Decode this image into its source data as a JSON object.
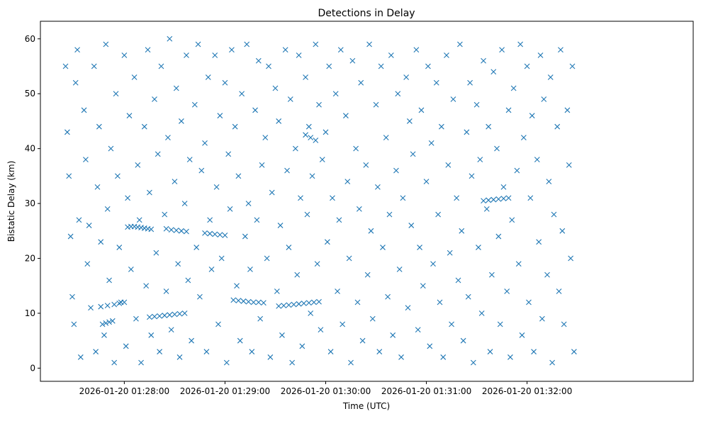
{
  "chart_data": {
    "type": "scatter",
    "title": "Detections in Delay",
    "xlabel": "Time (UTC)",
    "ylabel": "Bistatic Delay (km)",
    "x_unit": "seconds after 2026-01-20 01:27:00",
    "xlim": [
      10,
      399
    ],
    "ylim": [
      -2.4,
      63.2
    ],
    "xticks": [
      {
        "value": 60,
        "label": "2026-01-20 01:28:00"
      },
      {
        "value": 120,
        "label": "2026-01-20 01:29:00"
      },
      {
        "value": 180,
        "label": "2026-01-20 01:30:00"
      },
      {
        "value": 240,
        "label": "2026-01-20 01:31:00"
      },
      {
        "value": 300,
        "label": "2026-01-20 01:32:00"
      }
    ],
    "yticks": [
      0,
      10,
      20,
      30,
      40,
      50,
      60
    ],
    "marker": "x",
    "color": "#1f77b4",
    "points": [
      [
        25,
        55
      ],
      [
        26,
        43
      ],
      [
        27,
        35
      ],
      [
        28,
        24
      ],
      [
        29,
        13
      ],
      [
        30,
        8
      ],
      [
        31,
        52
      ],
      [
        32,
        58
      ],
      [
        33,
        27
      ],
      [
        34,
        2
      ],
      [
        36,
        47
      ],
      [
        37,
        38
      ],
      [
        38,
        19
      ],
      [
        39,
        26
      ],
      [
        40,
        11
      ],
      [
        42,
        55
      ],
      [
        43,
        3
      ],
      [
        44,
        33
      ],
      [
        45,
        44
      ],
      [
        46,
        23
      ],
      [
        48,
        6
      ],
      [
        49,
        59
      ],
      [
        50,
        29
      ],
      [
        51,
        16
      ],
      [
        52,
        40
      ],
      [
        54,
        1
      ],
      [
        55,
        50
      ],
      [
        56,
        35
      ],
      [
        57,
        22
      ],
      [
        58,
        12
      ],
      [
        60,
        57
      ],
      [
        61,
        4
      ],
      [
        62,
        31
      ],
      [
        63,
        46
      ],
      [
        64,
        18
      ],
      [
        66,
        53
      ],
      [
        67,
        9
      ],
      [
        68,
        37
      ],
      [
        69,
        27
      ],
      [
        70,
        1
      ],
      [
        72,
        44
      ],
      [
        73,
        15
      ],
      [
        74,
        58
      ],
      [
        75,
        32
      ],
      [
        76,
        6
      ],
      [
        78,
        49
      ],
      [
        79,
        21
      ],
      [
        80,
        39
      ],
      [
        81,
        3
      ],
      [
        82,
        55
      ],
      [
        84,
        28
      ],
      [
        85,
        14
      ],
      [
        86,
        42
      ],
      [
        87,
        60
      ],
      [
        88,
        7
      ],
      [
        90,
        34
      ],
      [
        91,
        51
      ],
      [
        92,
        19
      ],
      [
        93,
        2
      ],
      [
        94,
        45
      ],
      [
        96,
        30
      ],
      [
        97,
        57
      ],
      [
        98,
        16
      ],
      [
        99,
        38
      ],
      [
        100,
        5
      ],
      [
        102,
        48
      ],
      [
        103,
        22
      ],
      [
        104,
        59
      ],
      [
        105,
        13
      ],
      [
        106,
        36
      ],
      [
        108,
        41
      ],
      [
        109,
        3
      ],
      [
        110,
        53
      ],
      [
        111,
        27
      ],
      [
        112,
        18
      ],
      [
        114,
        57
      ],
      [
        115,
        33
      ],
      [
        116,
        8
      ],
      [
        117,
        46
      ],
      [
        118,
        20
      ],
      [
        120,
        52
      ],
      [
        121,
        1
      ],
      [
        122,
        39
      ],
      [
        123,
        29
      ],
      [
        124,
        58
      ],
      [
        126,
        44
      ],
      [
        127,
        15
      ],
      [
        128,
        35
      ],
      [
        129,
        5
      ],
      [
        130,
        50
      ],
      [
        132,
        24
      ],
      [
        133,
        59
      ],
      [
        134,
        30
      ],
      [
        135,
        18
      ],
      [
        136,
        3
      ],
      [
        138,
        47
      ],
      [
        139,
        27
      ],
      [
        140,
        56
      ],
      [
        141,
        9
      ],
      [
        142,
        37
      ],
      [
        144,
        42
      ],
      [
        145,
        20
      ],
      [
        146,
        55
      ],
      [
        147,
        2
      ],
      [
        148,
        32
      ],
      [
        150,
        51
      ],
      [
        151,
        14
      ],
      [
        152,
        45
      ],
      [
        153,
        26
      ],
      [
        154,
        6
      ],
      [
        156,
        58
      ],
      [
        157,
        36
      ],
      [
        158,
        22
      ],
      [
        159,
        49
      ],
      [
        160,
        1
      ],
      [
        162,
        40
      ],
      [
        163,
        17
      ],
      [
        164,
        57
      ],
      [
        165,
        31
      ],
      [
        166,
        4
      ],
      [
        168,
        53
      ],
      [
        169,
        28
      ],
      [
        170,
        44
      ],
      [
        171,
        10
      ],
      [
        172,
        35
      ],
      [
        174,
        59
      ],
      [
        175,
        19
      ],
      [
        176,
        48
      ],
      [
        177,
        7
      ],
      [
        178,
        38
      ],
      [
        180,
        43
      ],
      [
        181,
        23
      ],
      [
        182,
        55
      ],
      [
        183,
        3
      ],
      [
        184,
        31
      ],
      [
        186,
        50
      ],
      [
        187,
        14
      ],
      [
        188,
        27
      ],
      [
        189,
        58
      ],
      [
        190,
        8
      ],
      [
        192,
        46
      ],
      [
        193,
        34
      ],
      [
        194,
        20
      ],
      [
        195,
        1
      ],
      [
        196,
        56
      ],
      [
        198,
        40
      ],
      [
        199,
        12
      ],
      [
        200,
        29
      ],
      [
        201,
        52
      ],
      [
        202,
        5
      ],
      [
        204,
        37
      ],
      [
        205,
        17
      ],
      [
        206,
        59
      ],
      [
        207,
        25
      ],
      [
        208,
        9
      ],
      [
        210,
        48
      ],
      [
        211,
        33
      ],
      [
        212,
        3
      ],
      [
        213,
        55
      ],
      [
        214,
        22
      ],
      [
        216,
        42
      ],
      [
        217,
        13
      ],
      [
        218,
        28
      ],
      [
        219,
        57
      ],
      [
        220,
        6
      ],
      [
        222,
        36
      ],
      [
        223,
        50
      ],
      [
        224,
        18
      ],
      [
        225,
        2
      ],
      [
        226,
        31
      ],
      [
        228,
        53
      ],
      [
        229,
        11
      ],
      [
        230,
        45
      ],
      [
        231,
        26
      ],
      [
        232,
        39
      ],
      [
        234,
        58
      ],
      [
        235,
        7
      ],
      [
        236,
        22
      ],
      [
        237,
        47
      ],
      [
        238,
        15
      ],
      [
        240,
        34
      ],
      [
        241,
        55
      ],
      [
        242,
        4
      ],
      [
        243,
        41
      ],
      [
        244,
        19
      ],
      [
        246,
        52
      ],
      [
        247,
        28
      ],
      [
        248,
        12
      ],
      [
        249,
        44
      ],
      [
        250,
        2
      ],
      [
        252,
        57
      ],
      [
        253,
        37
      ],
      [
        254,
        21
      ],
      [
        255,
        8
      ],
      [
        256,
        49
      ],
      [
        258,
        31
      ],
      [
        259,
        16
      ],
      [
        260,
        59
      ],
      [
        261,
        25
      ],
      [
        262,
        5
      ],
      [
        264,
        43
      ],
      [
        265,
        13
      ],
      [
        266,
        52
      ],
      [
        267,
        35
      ],
      [
        268,
        1
      ],
      [
        270,
        48
      ],
      [
        271,
        22
      ],
      [
        272,
        38
      ],
      [
        273,
        10
      ],
      [
        274,
        56
      ],
      [
        276,
        29
      ],
      [
        277,
        44
      ],
      [
        278,
        3
      ],
      [
        279,
        17
      ],
      [
        280,
        54
      ],
      [
        282,
        40
      ],
      [
        283,
        24
      ],
      [
        284,
        8
      ],
      [
        285,
        58
      ],
      [
        286,
        33
      ],
      [
        288,
        14
      ],
      [
        289,
        47
      ],
      [
        290,
        2
      ],
      [
        291,
        27
      ],
      [
        292,
        51
      ],
      [
        294,
        36
      ],
      [
        295,
        19
      ],
      [
        296,
        59
      ],
      [
        297,
        6
      ],
      [
        298,
        42
      ],
      [
        300,
        55
      ],
      [
        301,
        12
      ],
      [
        302,
        31
      ],
      [
        303,
        46
      ],
      [
        304,
        3
      ],
      [
        306,
        38
      ],
      [
        307,
        23
      ],
      [
        308,
        57
      ],
      [
        309,
        9
      ],
      [
        310,
        49
      ],
      [
        312,
        17
      ],
      [
        313,
        34
      ],
      [
        314,
        53
      ],
      [
        315,
        1
      ],
      [
        316,
        28
      ],
      [
        318,
        44
      ],
      [
        319,
        14
      ],
      [
        320,
        58
      ],
      [
        321,
        25
      ],
      [
        322,
        8
      ],
      [
        324,
        47
      ],
      [
        325,
        37
      ],
      [
        326,
        20
      ],
      [
        327,
        55
      ],
      [
        328,
        3
      ],
      [
        47,
        8
      ],
      [
        49,
        8.2
      ],
      [
        51,
        8.4
      ],
      [
        53,
        8.6
      ],
      [
        46,
        11.2
      ],
      [
        50,
        11.4
      ],
      [
        54,
        11.6
      ],
      [
        57,
        11.8
      ],
      [
        60,
        12
      ],
      [
        62,
        25.7
      ],
      [
        64,
        25.8
      ],
      [
        66,
        25.8
      ],
      [
        68,
        25.7
      ],
      [
        70,
        25.6
      ],
      [
        72,
        25.5
      ],
      [
        74,
        25.4
      ],
      [
        76,
        25.3
      ],
      [
        85,
        25.4
      ],
      [
        88,
        25.2
      ],
      [
        91,
        25.1
      ],
      [
        94,
        25
      ],
      [
        97,
        24.9
      ],
      [
        108,
        24.6
      ],
      [
        111,
        24.5
      ],
      [
        114,
        24.4
      ],
      [
        117,
        24.3
      ],
      [
        120,
        24.2
      ],
      [
        75,
        9.3
      ],
      [
        78,
        9.4
      ],
      [
        81,
        9.5
      ],
      [
        84,
        9.6
      ],
      [
        87,
        9.7
      ],
      [
        90,
        9.8
      ],
      [
        93,
        9.9
      ],
      [
        96,
        10
      ],
      [
        125,
        12.4
      ],
      [
        128,
        12.3
      ],
      [
        131,
        12.2
      ],
      [
        134,
        12.1
      ],
      [
        137,
        12
      ],
      [
        140,
        12
      ],
      [
        143,
        11.9
      ],
      [
        152,
        11.3
      ],
      [
        155,
        11.4
      ],
      [
        158,
        11.5
      ],
      [
        161,
        11.6
      ],
      [
        164,
        11.7
      ],
      [
        167,
        11.8
      ],
      [
        170,
        11.9
      ],
      [
        173,
        12
      ],
      [
        176,
        12.1
      ],
      [
        274,
        30.5
      ],
      [
        277,
        30.6
      ],
      [
        280,
        30.7
      ],
      [
        283,
        30.8
      ],
      [
        286,
        30.9
      ],
      [
        289,
        31
      ],
      [
        168,
        42.5
      ],
      [
        171,
        42
      ],
      [
        174,
        41.5
      ]
    ]
  }
}
